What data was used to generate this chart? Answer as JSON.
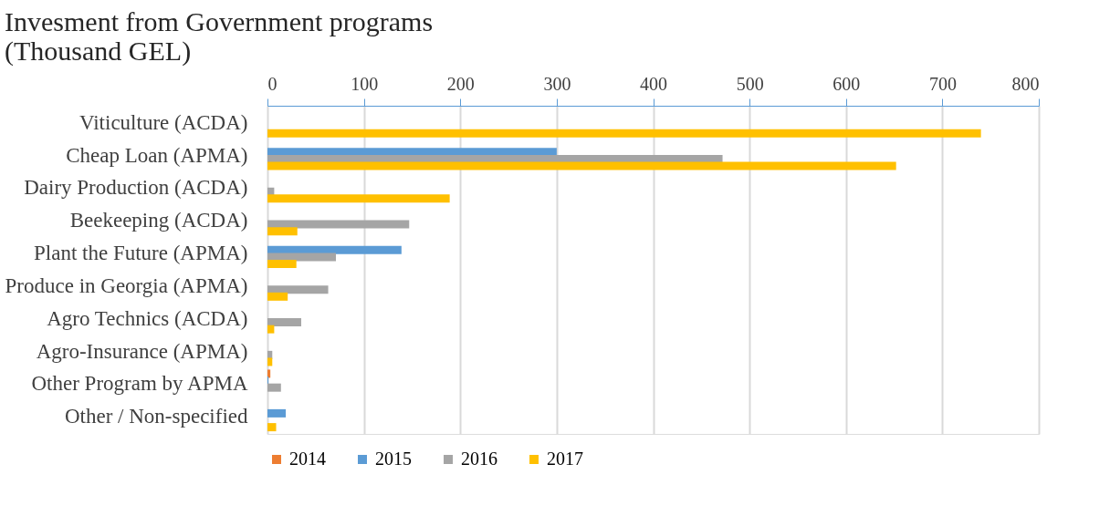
{
  "chart_data": {
    "type": "bar",
    "orientation": "horizontal",
    "title": "Invesment from Government programs\n(Thousand GEL)",
    "categories": [
      "Viticulture (ACDA)",
      "Cheap Loan (APMA)",
      "Dairy Production (ACDA)",
      "Beekeeping (ACDA)",
      "Plant the Future (APMA)",
      "Produce in Georgia (APMA)",
      "Agro Technics (ACDA)",
      "Agro-Insurance (APMA)",
      "Other Program by APMA",
      "Other / Non-specified"
    ],
    "series": [
      {
        "name": "2014",
        "color": "#ed7d31",
        "values": [
          null,
          null,
          null,
          null,
          null,
          null,
          null,
          null,
          3,
          null
        ]
      },
      {
        "name": "2015",
        "color": "#5b9bd5",
        "values": [
          null,
          300,
          null,
          null,
          139,
          null,
          null,
          null,
          1,
          19
        ]
      },
      {
        "name": "2016",
        "color": "#a5a5a5",
        "values": [
          null,
          472,
          7,
          147,
          71,
          63,
          35,
          5,
          14,
          null
        ]
      },
      {
        "name": "2017",
        "color": "#ffc000",
        "values": [
          740,
          652,
          189,
          31,
          30,
          21,
          7,
          5,
          null,
          9
        ]
      }
    ],
    "xlim": [
      0,
      800
    ],
    "xticks": [
      0,
      100,
      200,
      300,
      400,
      500,
      600,
      700,
      800
    ],
    "grid": "x",
    "legend": "bottom"
  }
}
